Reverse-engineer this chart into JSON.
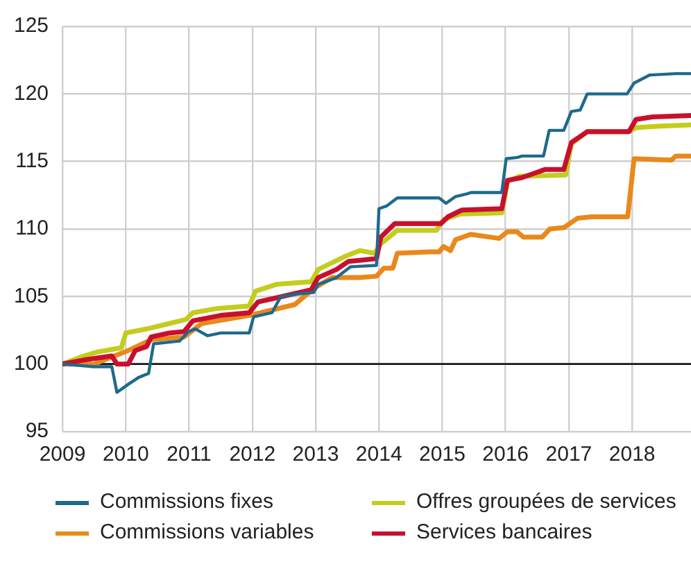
{
  "chart_data": {
    "type": "line",
    "xlim": [
      2009,
      2018.93
    ],
    "xticks": [
      2009,
      2010,
      2011,
      2012,
      2013,
      2014,
      2015,
      2016,
      2017,
      2018
    ],
    "ylim": [
      95,
      125
    ],
    "yticks": [
      95,
      100,
      105,
      110,
      115,
      120,
      125
    ],
    "grid": true,
    "legend": "bottom",
    "marker": "none",
    "line_style": "solid",
    "ref_lines": [
      {
        "axis": "y",
        "value": 100,
        "color": "#1a1a1a"
      }
    ],
    "series": [
      {
        "name": "Commissions fixes",
        "color": "#1d6a8c",
        "x": [
          2009,
          2009.49,
          2009.78,
          2009.86,
          2010.04,
          2010.2,
          2010.36,
          2010.44,
          2010.85,
          2010.99,
          2011.1,
          2011.29,
          2011.5,
          2011.95,
          2012.02,
          2012.31,
          2012.45,
          2012.74,
          2012.97,
          2013.04,
          2013.33,
          2013.55,
          2013.96,
          2014.0,
          2014.12,
          2014.29,
          2014.95,
          2015.06,
          2015.21,
          2015.39,
          2015.46,
          2015.94,
          2016.01,
          2016.19,
          2016.26,
          2016.6,
          2016.69,
          2016.92,
          2017.04,
          2017.18,
          2017.29,
          2017.92,
          2018.03,
          2018.28,
          2018.69,
          2018.93
        ],
        "values": [
          100,
          99.8,
          99.8,
          97.9,
          98.5,
          99.0,
          99.3,
          101.5,
          101.7,
          102.4,
          102.6,
          102.1,
          102.3,
          102.3,
          103.5,
          103.8,
          105.0,
          105.2,
          105.3,
          105.9,
          106.4,
          107.2,
          107.3,
          111.5,
          111.7,
          112.3,
          112.3,
          111.9,
          112.4,
          112.6,
          112.7,
          112.7,
          115.2,
          115.3,
          115.4,
          115.4,
          117.3,
          117.3,
          118.7,
          118.8,
          120.0,
          120.0,
          120.8,
          121.4,
          121.5,
          121.5
        ]
      },
      {
        "name": "Commissions variables",
        "color": "#e8891c",
        "x": [
          2009,
          2009.5,
          2009.82,
          2010.04,
          2010.4,
          2010.92,
          2011.2,
          2011.95,
          2012.67,
          2012.97,
          2013.26,
          2013.7,
          2013.96,
          2014.08,
          2014.22,
          2014.29,
          2014.8,
          2014.95,
          2015.02,
          2015.13,
          2015.21,
          2015.45,
          2015.9,
          2016.03,
          2016.18,
          2016.28,
          2016.58,
          2016.7,
          2016.92,
          2017.14,
          2017.36,
          2017.93,
          2018.03,
          2018.62,
          2018.69,
          2018.93
        ],
        "values": [
          100,
          100,
          100.6,
          101.0,
          101.8,
          102.0,
          103.0,
          103.6,
          104.4,
          105.6,
          106.4,
          106.4,
          106.5,
          107.1,
          107.1,
          108.2,
          108.3,
          108.3,
          108.7,
          108.4,
          109.2,
          109.6,
          109.3,
          109.8,
          109.8,
          109.4,
          109.4,
          110.0,
          110.1,
          110.8,
          110.9,
          110.9,
          115.2,
          115.1,
          115.4,
          115.4
        ]
      },
      {
        "name": "Offres groupées de services",
        "color": "#c4cc1e",
        "x": [
          2009,
          2009.34,
          2009.56,
          2009.93,
          2010.0,
          2010.33,
          2010.69,
          2010.95,
          2011.06,
          2011.43,
          2011.95,
          2012.05,
          2012.38,
          2012.93,
          2013.04,
          2013.26,
          2013.48,
          2013.7,
          2013.93,
          2014.03,
          2014.29,
          2014.91,
          2015.02,
          2015.28,
          2015.94,
          2016.03,
          2016.22,
          2016.95,
          2017.04,
          2017.29,
          2017.95,
          2018.06,
          2018.39,
          2018.93
        ],
        "values": [
          100,
          100.6,
          100.9,
          101.2,
          102.3,
          102.6,
          103.0,
          103.3,
          103.8,
          104.1,
          104.3,
          105.4,
          105.9,
          106.1,
          107.0,
          107.5,
          108.0,
          108.4,
          108.2,
          108.9,
          109.9,
          109.9,
          110.7,
          111.1,
          111.2,
          113.5,
          113.9,
          114.0,
          116.3,
          117.2,
          117.2,
          117.5,
          117.6,
          117.7
        ]
      },
      {
        "name": "Services bancaires",
        "color": "#c8102e",
        "x": [
          2009,
          2009.34,
          2009.78,
          2009.86,
          2010.04,
          2010.15,
          2010.33,
          2010.4,
          2010.69,
          2010.92,
          2011.06,
          2011.5,
          2011.95,
          2012.09,
          2012.38,
          2012.93,
          2013.04,
          2013.33,
          2013.52,
          2013.96,
          2014.03,
          2014.25,
          2014.98,
          2015.09,
          2015.31,
          2015.94,
          2016.03,
          2016.26,
          2016.62,
          2016.92,
          2017.04,
          2017.29,
          2017.95,
          2018.06,
          2018.32,
          2018.93
        ],
        "values": [
          100,
          100.3,
          100.6,
          100.0,
          100.0,
          101.0,
          101.3,
          102.0,
          102.3,
          102.4,
          103.2,
          103.6,
          103.8,
          104.6,
          104.9,
          105.5,
          106.4,
          107.0,
          107.6,
          107.8,
          109.4,
          110.4,
          110.4,
          110.9,
          111.4,
          111.5,
          113.6,
          113.8,
          114.4,
          114.4,
          116.4,
          117.2,
          117.2,
          118.1,
          118.3,
          118.4
        ]
      }
    ]
  }
}
